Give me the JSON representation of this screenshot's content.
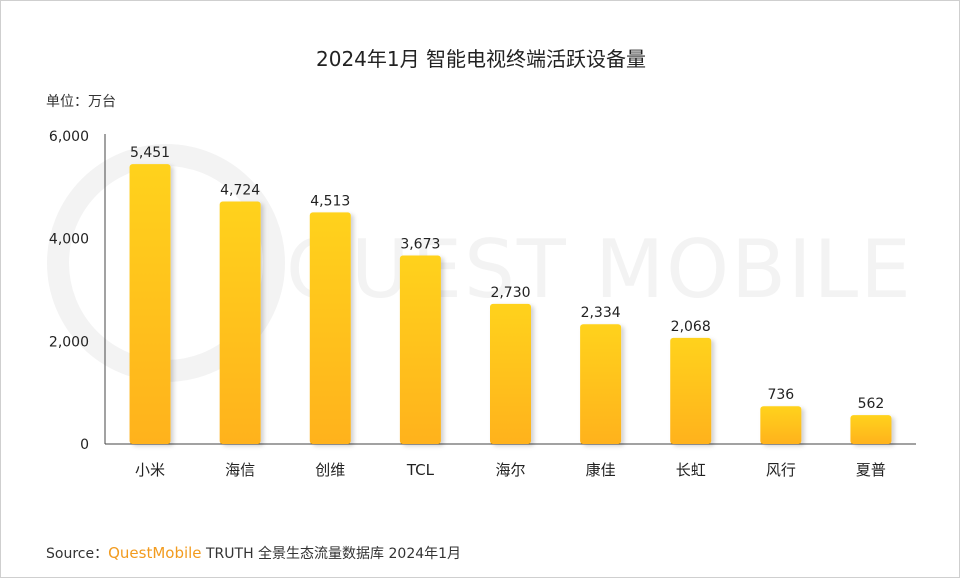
{
  "unit_label": "单位：万台",
  "watermark": "QUEST MOBILE",
  "source": {
    "prefix": "Source：",
    "brand": "QuestMobile",
    "suffix": " TRUTH 全景生态流量数据库 2024年1月"
  },
  "colors": {
    "bar_top": "#ffd21a",
    "bar_bottom": "#ffb21c",
    "axis": "#444444",
    "brand": "#f29b1e"
  },
  "chart_data": {
    "type": "bar",
    "title": "2024年1月 智能电视终端活跃设备量",
    "categories": [
      "小米",
      "海信",
      "创维",
      "TCL",
      "海尔",
      "康佳",
      "长虹",
      "风行",
      "夏普"
    ],
    "values": [
      5451,
      4724,
      4513,
      3673,
      2730,
      2334,
      2068,
      736,
      562
    ],
    "value_labels": [
      "5,451",
      "4,724",
      "4,513",
      "3,673",
      "2,730",
      "2,334",
      "2,068",
      "736",
      "562"
    ],
    "yticks": [
      "0",
      "2,000",
      "4,000",
      "6,000"
    ],
    "ytick_values": [
      0,
      2000,
      4000,
      6000
    ],
    "ylim": [
      0,
      6000
    ],
    "grid": false,
    "legend": "none"
  }
}
